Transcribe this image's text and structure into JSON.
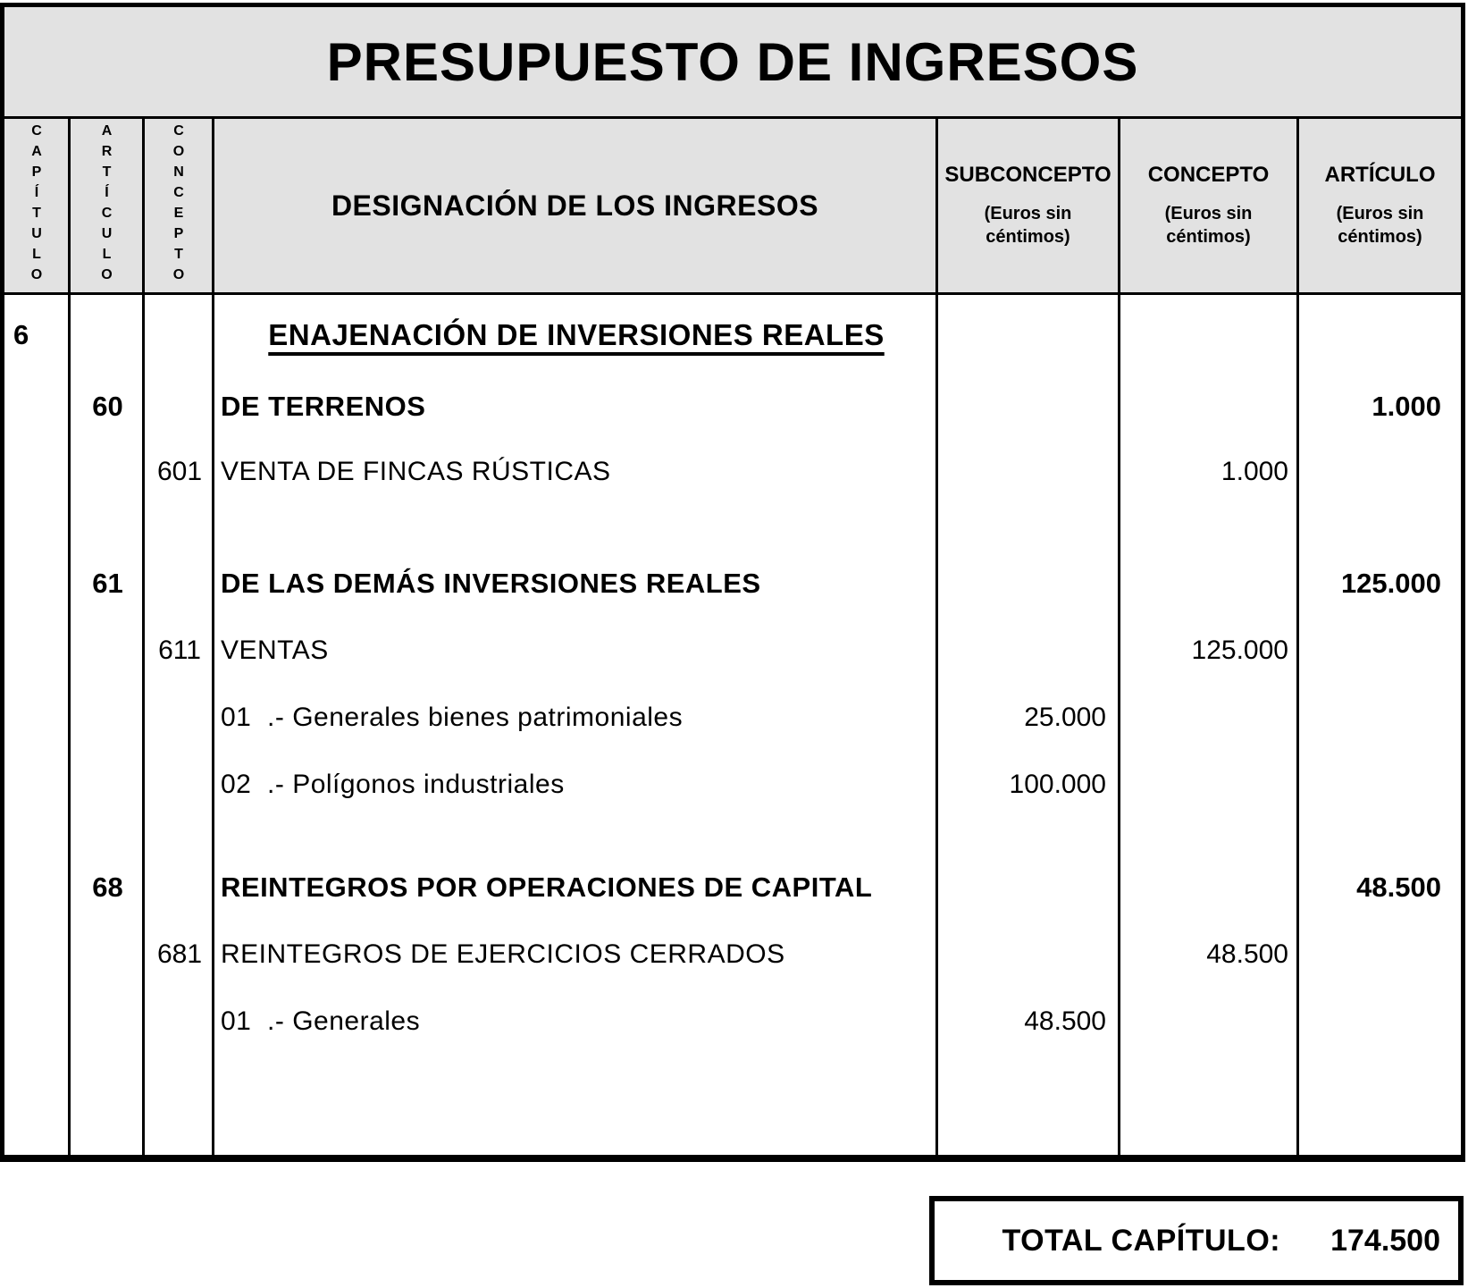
{
  "title": "PRESUPUESTO DE INGRESOS",
  "header": {
    "capitulo": "CAPÍTULO",
    "articulo": "ARTÍCULO",
    "concepto": "CONCEPTO",
    "designacion": "DESIGNACIÓN DE LOS INGRESOS",
    "subconcepto_label": "SUBCONCEPTO",
    "concepto_label": "CONCEPTO",
    "articulo_label": "ARTÍCULO",
    "euros_line1": "(Euros sin",
    "euros_line2": "céntimos)"
  },
  "rows": [
    {
      "capitulo": "6",
      "designacion": "ENAJENACIÓN DE INVERSIONES REALES"
    },
    {
      "articulo": "60",
      "designacion": "DE TERRENOS",
      "articulo_eur": "1.000"
    },
    {
      "concepto": "601",
      "designacion": "VENTA DE FINCAS RÚSTICAS",
      "concepto_eur": "1.000"
    },
    {
      "articulo": "61",
      "designacion": "DE LAS DEMÁS INVERSIONES REALES",
      "articulo_eur": "125.000"
    },
    {
      "concepto": "611",
      "designacion": "VENTAS",
      "concepto_eur": "125.000"
    },
    {
      "designacion": "01  .- Generales bienes patrimoniales",
      "subconcepto_eur": "25.000"
    },
    {
      "designacion": "02  .- Polígonos industriales",
      "subconcepto_eur": "100.000"
    },
    {
      "articulo": "68",
      "designacion": "REINTEGROS POR OPERACIONES DE CAPITAL",
      "articulo_eur": "48.500"
    },
    {
      "concepto": "681",
      "designacion": "REINTEGROS DE EJERCICIOS CERRADOS",
      "concepto_eur": "48.500"
    },
    {
      "designacion": "01  .- Generales",
      "subconcepto_eur": "48.500"
    }
  ],
  "total": {
    "label": "TOTAL CAPÍTULO:",
    "value": "174.500"
  },
  "colors": {
    "header_bg": "#e2e2e2",
    "border": "#000000",
    "text": "#000000"
  }
}
